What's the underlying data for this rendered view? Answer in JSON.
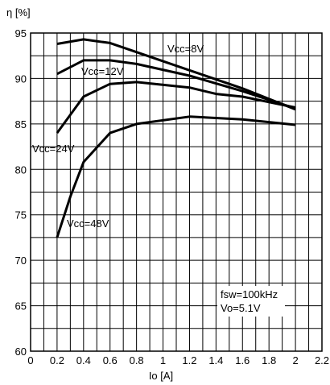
{
  "chart_data": {
    "type": "line",
    "title": "",
    "xlabel": "Io  [A]",
    "ylabel": "η [%]",
    "xlim": [
      0,
      2.2
    ],
    "ylim": [
      60,
      95
    ],
    "xticks": [
      0,
      0.2,
      0.4,
      0.6,
      0.8,
      1,
      1.2,
      1.4,
      1.6,
      1.8,
      2,
      2.2
    ],
    "xtick_labels": [
      "0",
      "0.2",
      "0.4",
      "0.6",
      "0.8",
      "1",
      "1.2",
      "1.4",
      "1.6",
      "1.8",
      "2",
      "2.2"
    ],
    "yticks": [
      60,
      65,
      70,
      75,
      80,
      85,
      90,
      95
    ],
    "ytick_labels": [
      "60",
      "65",
      "70",
      "75",
      "80",
      "85",
      "90",
      "95"
    ],
    "grid": true,
    "series": [
      {
        "name": "Vcc=8V",
        "x": [
          0.2,
          0.4,
          0.6,
          0.8,
          1.2,
          1.6,
          2.0
        ],
        "values": [
          93.8,
          94.3,
          93.9,
          92.9,
          90.9,
          88.9,
          86.6
        ]
      },
      {
        "name": "Vcc=12V",
        "x": [
          0.2,
          0.4,
          0.6,
          0.8,
          1.2,
          1.6,
          2.0
        ],
        "values": [
          90.5,
          92.0,
          92.0,
          91.6,
          90.3,
          88.6,
          86.7
        ]
      },
      {
        "name": "Vcc=24V",
        "x": [
          0.2,
          0.4,
          0.6,
          0.8,
          1.2,
          1.4,
          1.6,
          2.0
        ],
        "values": [
          84.0,
          88.0,
          89.4,
          89.6,
          89.0,
          88.3,
          88.0,
          86.8
        ]
      },
      {
        "name": "Vcc=48V",
        "x": [
          0.2,
          0.3,
          0.4,
          0.6,
          0.8,
          1.2,
          1.6,
          2.0
        ],
        "values": [
          72.5,
          77.0,
          80.8,
          84.0,
          85.0,
          85.8,
          85.5,
          84.9
        ]
      }
    ],
    "annotations": [
      "fsw=100kHz",
      "Vo=5.1V"
    ]
  }
}
